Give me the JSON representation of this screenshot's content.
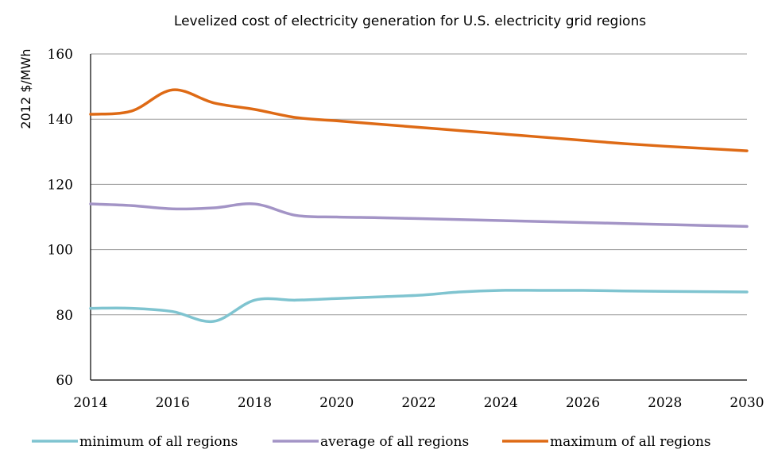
{
  "chart_data": {
    "type": "line",
    "title": "Levelized cost of electricity generation for U.S. electricity grid regions",
    "xlabel": "",
    "ylabel": "2012 $/MWh",
    "xlim": [
      2014,
      2030
    ],
    "ylim": [
      60,
      160
    ],
    "x_ticks": [
      "2014",
      "2016",
      "2018",
      "2020",
      "2022",
      "2024",
      "2026",
      "2028",
      "2030"
    ],
    "y_ticks": [
      "60",
      "80",
      "100",
      "120",
      "140",
      "160"
    ],
    "grid": "horizontal",
    "legend_position": "bottom",
    "x": [
      2014,
      2015,
      2016,
      2017,
      2018,
      2019,
      2020,
      2021,
      2022,
      2023,
      2024,
      2025,
      2026,
      2027,
      2028,
      2029,
      2030
    ],
    "series": [
      {
        "name": "minimum of all regions",
        "color": "#7FC4D0",
        "values": [
          82.0,
          82.0,
          81.0,
          78.0,
          84.5,
          84.5,
          85.0,
          85.5,
          86.0,
          87.0,
          87.5,
          87.5,
          87.5,
          87.3,
          87.2,
          87.1,
          87.0
        ]
      },
      {
        "name": "average of all regions",
        "color": "#A394C6",
        "values": [
          114.0,
          113.5,
          112.5,
          112.8,
          114.0,
          110.5,
          110.0,
          109.8,
          109.5,
          109.2,
          108.9,
          108.6,
          108.3,
          108.0,
          107.7,
          107.4,
          107.1
        ]
      },
      {
        "name": "maximum of all regions",
        "color": "#DE6A15",
        "values": [
          141.5,
          142.5,
          149.0,
          145.0,
          143.0,
          140.5,
          139.5,
          138.5,
          137.5,
          136.5,
          135.5,
          134.5,
          133.5,
          132.5,
          131.7,
          131.0,
          130.3
        ]
      }
    ]
  }
}
